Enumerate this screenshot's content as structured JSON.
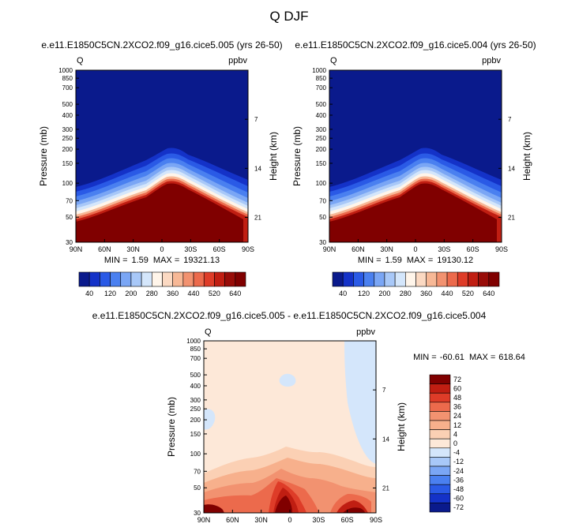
{
  "page_title": "Q DJF",
  "colors": {
    "positive_panel_scale": [
      "#0a1a8c",
      "#1432c8",
      "#2a5ae6",
      "#4a80f0",
      "#7aa6f5",
      "#a8c8f8",
      "#d4e6fb",
      "#fff5ea",
      "#fbd9c2",
      "#f7b896",
      "#f29270",
      "#ec6a4c",
      "#de3c28",
      "#c01e12",
      "#980c08",
      "#800000"
    ],
    "diff_scale": [
      "#0a1a8c",
      "#1432c8",
      "#2a5ae6",
      "#4a80f0",
      "#7aa6f5",
      "#a8c8f8",
      "#d4e6fb",
      "#fde8d8",
      "#fbd0b4",
      "#f7b08c",
      "#f29270",
      "#ec6a4c",
      "#de3c28",
      "#c01e12",
      "#800000"
    ]
  },
  "chart_data": [
    {
      "type": "heatmap",
      "title": "e.e11.E1850C5CN.2XCO2.f09_g16.cice5.005 (yrs 26-50)",
      "variable_label": "Q",
      "units_label": "ppbv",
      "ylabel": "Pressure (mb)",
      "right_ylabel": "Height (km)",
      "x_ticks": [
        "90N",
        "60N",
        "30N",
        "0",
        "30S",
        "60S",
        "90S"
      ],
      "y_ticks": [
        "30",
        "50",
        "70",
        "100",
        "150",
        "200",
        "250",
        "300",
        "400",
        "500",
        "700",
        "850",
        "1000"
      ],
      "right_ticks": [
        "21",
        "14",
        "7"
      ],
      "min_label": "MIN =",
      "min_value": "1.59",
      "max_label": "MAX =",
      "max_value": "19321.13",
      "colorbar_labels": [
        "40",
        "120",
        "200",
        "280",
        "360",
        "440",
        "520",
        "640"
      ]
    },
    {
      "type": "heatmap",
      "title": "e.e11.E1850C5CN.2XCO2.f09_g16.cice5.004 (yrs 26-50)",
      "variable_label": "Q",
      "units_label": "ppbv",
      "ylabel": "Pressure (mb)",
      "right_ylabel": "Height (km)",
      "x_ticks": [
        "90N",
        "60N",
        "30N",
        "0",
        "30S",
        "60S",
        "90S"
      ],
      "y_ticks": [
        "30",
        "50",
        "70",
        "100",
        "150",
        "200",
        "250",
        "300",
        "400",
        "500",
        "700",
        "850",
        "1000"
      ],
      "right_ticks": [
        "21",
        "14",
        "7"
      ],
      "min_label": "MIN =",
      "min_value": "1.59",
      "max_label": "MAX =",
      "max_value": "19130.12",
      "colorbar_labels": [
        "40",
        "120",
        "200",
        "280",
        "360",
        "440",
        "520",
        "640"
      ]
    },
    {
      "type": "heatmap",
      "title": "e.e11.E1850C5CN.2XCO2.f09_g16.cice5.005 - e.e11.E1850C5CN.2XCO2.f09_g16.cice5.004",
      "variable_label": "Q",
      "units_label": "ppbv",
      "ylabel": "Pressure (mb)",
      "right_ylabel": "Height (km)",
      "x_ticks": [
        "90N",
        "60N",
        "30N",
        "0",
        "30S",
        "60S",
        "90S"
      ],
      "y_ticks": [
        "30",
        "50",
        "70",
        "100",
        "150",
        "200",
        "250",
        "300",
        "400",
        "500",
        "700",
        "850",
        "1000"
      ],
      "right_ticks": [
        "21",
        "14",
        "7"
      ],
      "min_label": "MIN =",
      "min_value": "-60.61",
      "max_label": "MAX =",
      "max_value": "618.64",
      "colorbar_labels": [
        "72",
        "60",
        "48",
        "36",
        "24",
        "12",
        "4",
        "0",
        "-4",
        "-12",
        "-24",
        "-36",
        "-48",
        "-60",
        "-72"
      ]
    }
  ]
}
